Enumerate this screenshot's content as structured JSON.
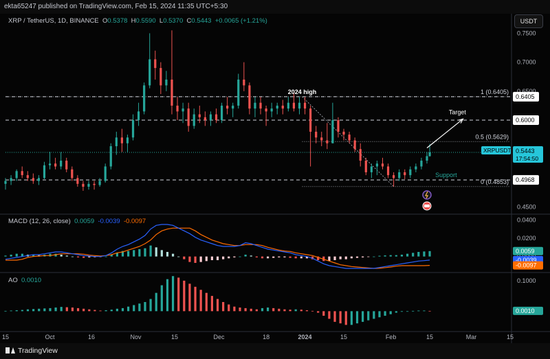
{
  "header": {
    "publisher_text": "ekta65247 published on TradingView.com, Feb 15, 2024 11:35 UTC+5:30",
    "currency_button": "USDT"
  },
  "legend": {
    "symbol": "XRP / TetherUS, 1D, BINANCE",
    "open_label": "O",
    "open": "0.5378",
    "high_label": "H",
    "high": "0.5590",
    "low_label": "L",
    "low": "0.5370",
    "close_label": "C",
    "close": "0.5443",
    "change": "+0.0065 (+1.21%)"
  },
  "colors": {
    "up": "#26a69a",
    "down": "#ef5350",
    "macd_line": "#2962ff",
    "signal_line": "#ff6d00",
    "price_tag": "#26c6da",
    "white": "#ffffff"
  },
  "chart_data": [
    {
      "type": "candlestick",
      "symbol": "XRP / TetherUS",
      "interval": "1D",
      "x_tick_labels": [
        "15",
        "Oct",
        "16",
        "Nov",
        "15",
        "Dec",
        "18",
        "2024",
        "15",
        "Feb",
        "15",
        "Mar",
        "15"
      ],
      "x_tick_dates": [
        "2023-09-15",
        "2023-10-01",
        "2023-10-16",
        "2023-11-01",
        "2023-11-15",
        "2023-12-01",
        "2023-12-18",
        "2024-01-01",
        "2024-01-15",
        "2024-02-01",
        "2024-02-15",
        "2024-03-01",
        "2024-03-15"
      ],
      "ylim": [
        0.44,
        0.76
      ],
      "y_tick_labels": [
        "0.7500",
        "0.7000",
        "0.6500",
        "0.6000",
        "0.5500",
        "0.5000",
        "0.4500"
      ],
      "y_ticks": [
        0.75,
        0.7,
        0.65,
        0.6,
        0.55,
        0.5,
        0.45
      ],
      "grid": false,
      "candles": [
        {
          "date": "2023-09-15",
          "o": 0.49,
          "h": 0.5,
          "l": 0.48,
          "c": 0.495
        },
        {
          "date": "2023-09-17",
          "o": 0.495,
          "h": 0.505,
          "l": 0.488,
          "c": 0.5
        },
        {
          "date": "2023-09-19",
          "o": 0.5,
          "h": 0.515,
          "l": 0.495,
          "c": 0.512
        },
        {
          "date": "2023-09-21",
          "o": 0.512,
          "h": 0.52,
          "l": 0.5,
          "c": 0.505
        },
        {
          "date": "2023-09-23",
          "o": 0.505,
          "h": 0.512,
          "l": 0.495,
          "c": 0.5
        },
        {
          "date": "2023-09-25",
          "o": 0.5,
          "h": 0.508,
          "l": 0.49,
          "c": 0.495
        },
        {
          "date": "2023-09-27",
          "o": 0.495,
          "h": 0.505,
          "l": 0.488,
          "c": 0.5
        },
        {
          "date": "2023-09-29",
          "o": 0.5,
          "h": 0.528,
          "l": 0.498,
          "c": 0.522
        },
        {
          "date": "2023-10-01",
          "o": 0.522,
          "h": 0.545,
          "l": 0.515,
          "c": 0.525
        },
        {
          "date": "2023-10-03",
          "o": 0.525,
          "h": 0.535,
          "l": 0.515,
          "c": 0.52
        },
        {
          "date": "2023-10-05",
          "o": 0.52,
          "h": 0.545,
          "l": 0.515,
          "c": 0.53
        },
        {
          "date": "2023-10-07",
          "o": 0.53,
          "h": 0.535,
          "l": 0.51,
          "c": 0.515
        },
        {
          "date": "2023-10-09",
          "o": 0.515,
          "h": 0.52,
          "l": 0.495,
          "c": 0.5
        },
        {
          "date": "2023-10-11",
          "o": 0.5,
          "h": 0.505,
          "l": 0.485,
          "c": 0.49
        },
        {
          "date": "2023-10-13",
          "o": 0.49,
          "h": 0.495,
          "l": 0.478,
          "c": 0.485
        },
        {
          "date": "2023-10-15",
          "o": 0.485,
          "h": 0.495,
          "l": 0.48,
          "c": 0.49
        },
        {
          "date": "2023-10-17",
          "o": 0.49,
          "h": 0.495,
          "l": 0.48,
          "c": 0.488
        },
        {
          "date": "2023-10-19",
          "o": 0.488,
          "h": 0.5,
          "l": 0.485,
          "c": 0.495
        },
        {
          "date": "2023-10-21",
          "o": 0.495,
          "h": 0.525,
          "l": 0.492,
          "c": 0.52
        },
        {
          "date": "2023-10-23",
          "o": 0.52,
          "h": 0.56,
          "l": 0.515,
          "c": 0.555
        },
        {
          "date": "2023-10-25",
          "o": 0.555,
          "h": 0.58,
          "l": 0.54,
          "c": 0.57
        },
        {
          "date": "2023-10-27",
          "o": 0.57,
          "h": 0.585,
          "l": 0.545,
          "c": 0.56
        },
        {
          "date": "2023-10-29",
          "o": 0.56,
          "h": 0.575,
          "l": 0.545,
          "c": 0.57
        },
        {
          "date": "2023-10-31",
          "o": 0.57,
          "h": 0.61,
          "l": 0.565,
          "c": 0.6
        },
        {
          "date": "2023-11-02",
          "o": 0.6,
          "h": 0.63,
          "l": 0.59,
          "c": 0.615
        },
        {
          "date": "2023-11-04",
          "o": 0.615,
          "h": 0.665,
          "l": 0.61,
          "c": 0.66
        },
        {
          "date": "2023-11-06",
          "o": 0.66,
          "h": 0.75,
          "l": 0.655,
          "c": 0.705
        },
        {
          "date": "2023-11-08",
          "o": 0.705,
          "h": 0.72,
          "l": 0.67,
          "c": 0.69
        },
        {
          "date": "2023-11-10",
          "o": 0.69,
          "h": 0.7,
          "l": 0.645,
          "c": 0.66
        },
        {
          "date": "2023-11-12",
          "o": 0.66,
          "h": 0.685,
          "l": 0.65,
          "c": 0.67
        },
        {
          "date": "2023-11-14",
          "o": 0.67,
          "h": 0.755,
          "l": 0.61,
          "c": 0.625
        },
        {
          "date": "2023-11-16",
          "o": 0.625,
          "h": 0.64,
          "l": 0.6,
          "c": 0.615
        },
        {
          "date": "2023-11-18",
          "o": 0.615,
          "h": 0.63,
          "l": 0.595,
          "c": 0.62
        },
        {
          "date": "2023-11-20",
          "o": 0.62,
          "h": 0.63,
          "l": 0.58,
          "c": 0.59
        },
        {
          "date": "2023-11-22",
          "o": 0.59,
          "h": 0.62,
          "l": 0.585,
          "c": 0.61
        },
        {
          "date": "2023-11-24",
          "o": 0.61,
          "h": 0.625,
          "l": 0.595,
          "c": 0.605
        },
        {
          "date": "2023-11-26",
          "o": 0.605,
          "h": 0.615,
          "l": 0.59,
          "c": 0.6
        },
        {
          "date": "2023-11-28",
          "o": 0.6,
          "h": 0.615,
          "l": 0.59,
          "c": 0.61
        },
        {
          "date": "2023-11-30",
          "o": 0.61,
          "h": 0.62,
          "l": 0.595,
          "c": 0.6
        },
        {
          "date": "2023-12-02",
          "o": 0.6,
          "h": 0.63,
          "l": 0.595,
          "c": 0.625
        },
        {
          "date": "2023-12-04",
          "o": 0.625,
          "h": 0.64,
          "l": 0.61,
          "c": 0.62
        },
        {
          "date": "2023-12-06",
          "o": 0.62,
          "h": 0.63,
          "l": 0.605,
          "c": 0.625
        },
        {
          "date": "2023-12-08",
          "o": 0.625,
          "h": 0.68,
          "l": 0.62,
          "c": 0.67
        },
        {
          "date": "2023-12-10",
          "o": 0.67,
          "h": 0.7,
          "l": 0.65,
          "c": 0.66
        },
        {
          "date": "2023-12-12",
          "o": 0.66,
          "h": 0.665,
          "l": 0.61,
          "c": 0.62
        },
        {
          "date": "2023-12-14",
          "o": 0.62,
          "h": 0.64,
          "l": 0.605,
          "c": 0.63
        },
        {
          "date": "2023-12-16",
          "o": 0.63,
          "h": 0.64,
          "l": 0.61,
          "c": 0.62
        },
        {
          "date": "2023-12-18",
          "o": 0.62,
          "h": 0.625,
          "l": 0.59,
          "c": 0.615
        },
        {
          "date": "2023-12-20",
          "o": 0.615,
          "h": 0.63,
          "l": 0.605,
          "c": 0.62
        },
        {
          "date": "2023-12-22",
          "o": 0.62,
          "h": 0.63,
          "l": 0.61,
          "c": 0.625
        },
        {
          "date": "2023-12-24",
          "o": 0.625,
          "h": 0.635,
          "l": 0.61,
          "c": 0.62
        },
        {
          "date": "2023-12-26",
          "o": 0.62,
          "h": 0.64,
          "l": 0.615,
          "c": 0.63
        },
        {
          "date": "2023-12-28",
          "o": 0.63,
          "h": 0.65,
          "l": 0.615,
          "c": 0.62
        },
        {
          "date": "2023-12-30",
          "o": 0.62,
          "h": 0.64,
          "l": 0.61,
          "c": 0.63
        },
        {
          "date": "2024-01-01",
          "o": 0.63,
          "h": 0.64,
          "l": 0.61,
          "c": 0.62
        },
        {
          "date": "2024-01-03",
          "o": 0.62,
          "h": 0.625,
          "l": 0.52,
          "c": 0.58
        },
        {
          "date": "2024-01-05",
          "o": 0.58,
          "h": 0.59,
          "l": 0.56,
          "c": 0.57
        },
        {
          "date": "2024-01-07",
          "o": 0.57,
          "h": 0.58,
          "l": 0.555,
          "c": 0.565
        },
        {
          "date": "2024-01-09",
          "o": 0.565,
          "h": 0.595,
          "l": 0.55,
          "c": 0.56
        },
        {
          "date": "2024-01-11",
          "o": 0.56,
          "h": 0.63,
          "l": 0.56,
          "c": 0.6
        },
        {
          "date": "2024-01-13",
          "o": 0.6,
          "h": 0.605,
          "l": 0.57,
          "c": 0.58
        },
        {
          "date": "2024-01-15",
          "o": 0.58,
          "h": 0.585,
          "l": 0.565,
          "c": 0.575
        },
        {
          "date": "2024-01-17",
          "o": 0.575,
          "h": 0.58,
          "l": 0.56,
          "c": 0.565
        },
        {
          "date": "2024-01-19",
          "o": 0.565,
          "h": 0.57,
          "l": 0.545,
          "c": 0.55
        },
        {
          "date": "2024-01-21",
          "o": 0.55,
          "h": 0.56,
          "l": 0.52,
          "c": 0.53
        },
        {
          "date": "2024-01-23",
          "o": 0.53,
          "h": 0.535,
          "l": 0.505,
          "c": 0.51
        },
        {
          "date": "2024-01-25",
          "o": 0.51,
          "h": 0.525,
          "l": 0.5,
          "c": 0.52
        },
        {
          "date": "2024-01-27",
          "o": 0.52,
          "h": 0.53,
          "l": 0.505,
          "c": 0.525
        },
        {
          "date": "2024-01-29",
          "o": 0.525,
          "h": 0.535,
          "l": 0.515,
          "c": 0.52
        },
        {
          "date": "2024-01-31",
          "o": 0.52,
          "h": 0.525,
          "l": 0.5,
          "c": 0.505
        },
        {
          "date": "2024-02-02",
          "o": 0.505,
          "h": 0.51,
          "l": 0.485,
          "c": 0.5
        },
        {
          "date": "2024-02-04",
          "o": 0.5,
          "h": 0.515,
          "l": 0.495,
          "c": 0.51
        },
        {
          "date": "2024-02-06",
          "o": 0.51,
          "h": 0.515,
          "l": 0.498,
          "c": 0.505
        },
        {
          "date": "2024-02-08",
          "o": 0.505,
          "h": 0.52,
          "l": 0.5,
          "c": 0.515
        },
        {
          "date": "2024-02-10",
          "o": 0.515,
          "h": 0.525,
          "l": 0.51,
          "c": 0.52
        },
        {
          "date": "2024-02-12",
          "o": 0.52,
          "h": 0.535,
          "l": 0.515,
          "c": 0.53
        },
        {
          "date": "2024-02-14",
          "o": 0.53,
          "h": 0.545,
          "l": 0.525,
          "c": 0.5378
        },
        {
          "date": "2024-02-15",
          "o": 0.5378,
          "h": 0.559,
          "l": 0.537,
          "c": 0.5443
        }
      ],
      "price_tags": [
        {
          "value": 0.75,
          "label": "0.7500",
          "style": "axis"
        },
        {
          "value": 0.6405,
          "label": "0.6405",
          "style": "white"
        },
        {
          "value": 0.6,
          "label": "0.6000",
          "style": "white"
        },
        {
          "value": 0.5443,
          "label": "0.5443",
          "style": "current"
        },
        {
          "value": 0.4968,
          "label": "0.4968",
          "style": "white"
        }
      ],
      "current_price_tag": {
        "symbol": "XRPUSDT",
        "price": "0.5443",
        "countdown": "17:54:50"
      },
      "horizontal_levels": [
        {
          "value": 0.6405,
          "label": "1 (0.6405)"
        },
        {
          "value": 0.5629,
          "label": "0.5 (0.5629)"
        },
        {
          "value": 0.4853,
          "label": "0 (0.4853)"
        }
      ],
      "support_level": {
        "value": 0.4968,
        "label": "Support"
      },
      "resistance_level": {
        "value": 0.6
      },
      "annotations": [
        {
          "text": "2024 high",
          "date": "2023-12-31",
          "value": 0.645
        },
        {
          "text": "Target",
          "date": "2024-02-25",
          "value": 0.61
        }
      ],
      "target_arrow": {
        "from": {
          "date": "2024-02-14",
          "value": 0.552
        },
        "to": {
          "date": "2024-02-27",
          "value": 0.602
        }
      },
      "fib_trend": {
        "from": {
          "date": "2023-12-31",
          "value": 0.6405
        },
        "to": {
          "date": "2024-02-02",
          "value": 0.4853
        }
      }
    },
    {
      "type": "bar_line",
      "name": "MACD (12, 26, close)",
      "values_display": {
        "histogram": "0.0059",
        "macd": "-0.0039",
        "signal": "-0.0097"
      },
      "ylim": [
        -0.016,
        0.044
      ],
      "y_tick_labels": [
        "0.0400",
        "0.0200",
        "0.0000"
      ],
      "y_ticks": [
        0.04,
        0.02,
        0.0
      ],
      "histogram": [
        0.001,
        0.002,
        0.003,
        0.003,
        0.002,
        0.002,
        0.0015,
        0.002,
        0.003,
        0.003,
        0.002,
        0.001,
        0.0,
        -0.001,
        -0.0015,
        -0.001,
        -0.0008,
        -0.0005,
        0.0,
        0.002,
        0.004,
        0.006,
        0.006,
        0.007,
        0.008,
        0.009,
        0.012,
        0.01,
        0.007,
        0.005,
        0.003,
        0.0,
        -0.003,
        -0.006,
        -0.007,
        -0.006,
        -0.005,
        -0.004,
        -0.004,
        -0.003,
        -0.002,
        -0.001,
        0.0,
        0.002,
        0.001,
        -0.001,
        -0.002,
        -0.002,
        -0.0015,
        -0.001,
        -0.001,
        -0.0015,
        -0.002,
        -0.002,
        -0.002,
        -0.003,
        -0.004,
        -0.005,
        -0.005,
        -0.004,
        -0.003,
        -0.003,
        -0.002,
        -0.0015,
        -0.001,
        -0.0005,
        0.0,
        0.0008,
        0.0012,
        0.0015,
        0.0015,
        0.002,
        0.003,
        0.004,
        0.005,
        0.0055,
        0.0059
      ],
      "macd": [
        -0.003,
        -0.002,
        -0.001,
        0.0,
        0.001,
        0.002,
        0.002,
        0.003,
        0.004,
        0.005,
        0.005,
        0.004,
        0.003,
        0.002,
        0.001,
        0.0005,
        0.0,
        0.0,
        0.001,
        0.004,
        0.008,
        0.011,
        0.013,
        0.016,
        0.019,
        0.023,
        0.03,
        0.034,
        0.035,
        0.035,
        0.034,
        0.031,
        0.028,
        0.025,
        0.021,
        0.018,
        0.016,
        0.014,
        0.012,
        0.011,
        0.011,
        0.011,
        0.012,
        0.015,
        0.014,
        0.012,
        0.01,
        0.008,
        0.007,
        0.006,
        0.005,
        0.004,
        0.002,
        0.001,
        0.0,
        -0.002,
        -0.005,
        -0.008,
        -0.01,
        -0.011,
        -0.012,
        -0.013,
        -0.013,
        -0.013,
        -0.013,
        -0.013,
        -0.013,
        -0.012,
        -0.011,
        -0.01,
        -0.009,
        -0.008,
        -0.007,
        -0.006,
        -0.005,
        -0.0045,
        -0.0039
      ],
      "signal": [
        -0.004,
        -0.004,
        -0.004,
        -0.003,
        -0.001,
        0.0,
        0.0005,
        0.001,
        0.001,
        0.002,
        0.003,
        0.003,
        0.003,
        0.003,
        0.0025,
        0.0015,
        0.001,
        0.0005,
        0.001,
        0.002,
        0.004,
        0.005,
        0.007,
        0.009,
        0.011,
        0.014,
        0.018,
        0.024,
        0.028,
        0.03,
        0.031,
        0.031,
        0.031,
        0.031,
        0.028,
        0.024,
        0.021,
        0.018,
        0.016,
        0.014,
        0.013,
        0.012,
        0.012,
        0.013,
        0.013,
        0.013,
        0.012,
        0.01,
        0.0085,
        0.007,
        0.006,
        0.0055,
        0.004,
        0.003,
        0.002,
        0.001,
        -0.001,
        -0.003,
        -0.005,
        -0.007,
        -0.009,
        -0.01,
        -0.011,
        -0.0115,
        -0.012,
        -0.0125,
        -0.013,
        -0.0128,
        -0.0122,
        -0.0115,
        -0.0105,
        -0.01,
        -0.01,
        -0.01,
        -0.01,
        -0.01,
        -0.0097
      ]
    },
    {
      "type": "bar",
      "name": "AO",
      "value_display": "0.0010",
      "ylim": [
        -0.06,
        0.12
      ],
      "y_tick_labels": [
        "0.1000",
        "0.0000"
      ],
      "y_ticks": [
        0.1,
        0.0
      ],
      "values": [
        0.001,
        0.002,
        0.003,
        0.004,
        0.006,
        0.007,
        0.008,
        0.009,
        0.01,
        0.012,
        0.014,
        0.013,
        0.012,
        0.01,
        0.008,
        0.006,
        0.004,
        0.002,
        0.003,
        0.005,
        0.008,
        0.01,
        0.015,
        0.02,
        0.025,
        0.03,
        0.04,
        0.06,
        0.085,
        0.105,
        0.115,
        0.11,
        0.1,
        0.09,
        0.08,
        0.07,
        0.06,
        0.05,
        0.04,
        0.03,
        0.022,
        0.015,
        0.012,
        0.01,
        0.008,
        0.006,
        0.01,
        0.012,
        0.01,
        0.008,
        0.006,
        0.005,
        0.006,
        0.005,
        0.003,
        0.001,
        -0.005,
        -0.015,
        -0.025,
        -0.035,
        -0.04,
        -0.045,
        -0.045,
        -0.04,
        -0.035,
        -0.03,
        -0.025,
        -0.02,
        -0.015,
        -0.01,
        -0.005,
        -0.002,
        0.0,
        0.001,
        0.002,
        0.002,
        0.001
      ]
    }
  ],
  "footer": {
    "brand": "TradingView"
  }
}
